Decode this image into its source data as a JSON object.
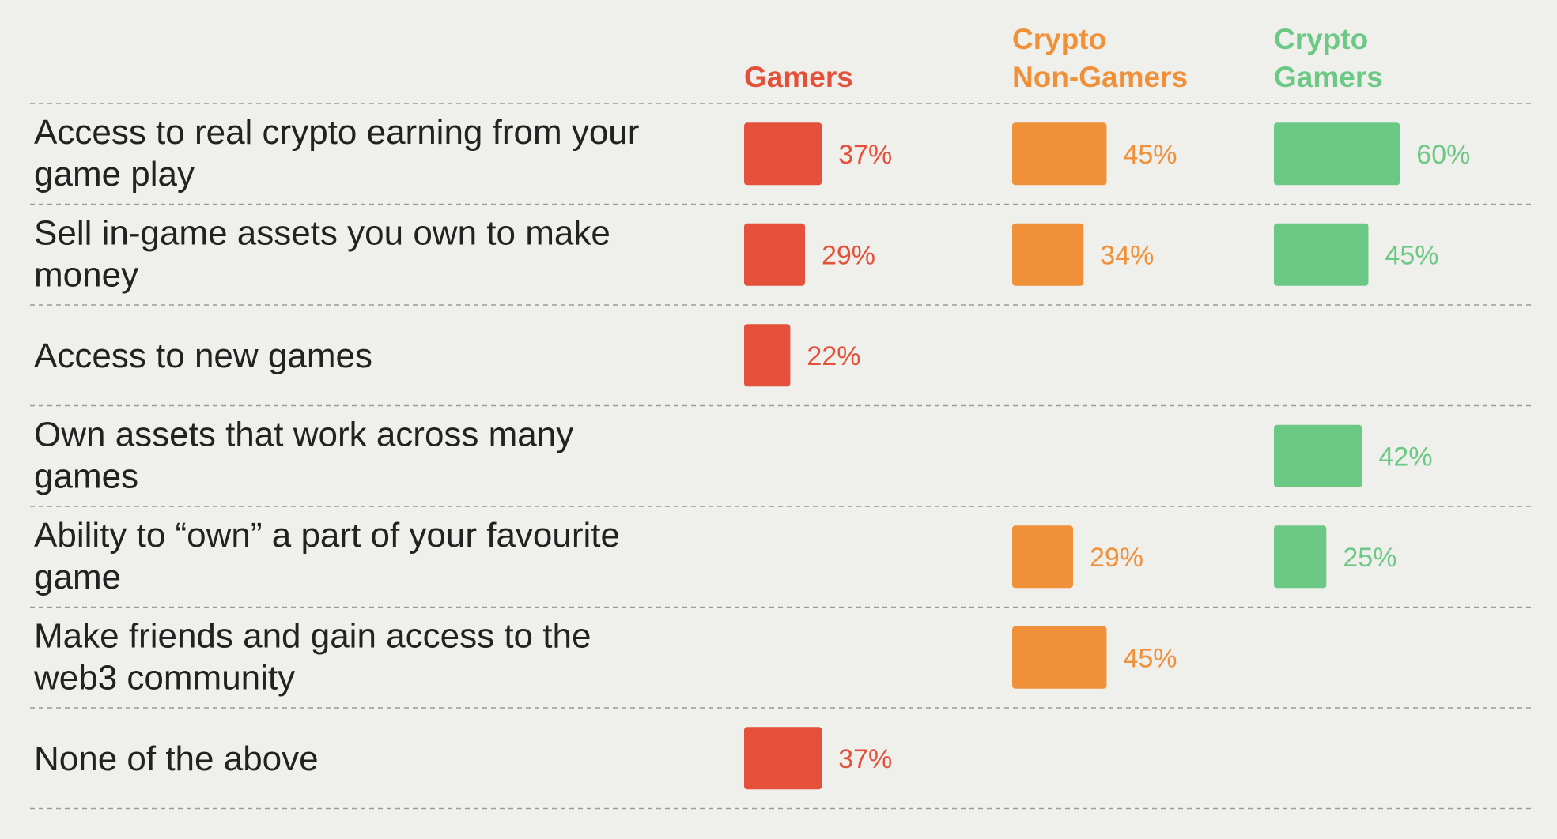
{
  "colors": {
    "background": "#efefeb",
    "gamers": "#e5503b",
    "crypto_non_gamers": "#f0913a",
    "crypto_gamers": "#6cc985",
    "text": "#222222",
    "divider": "#9a9a9a"
  },
  "chart_data": {
    "type": "bar",
    "orientation": "horizontal",
    "value_unit": "%",
    "grid": false,
    "legend": "column headers at top",
    "categories": [
      "Access to real crypto earning  from your game play",
      "Sell in-game assets you own to make money",
      "Access to new games",
      "Own assets that work across many games",
      "Ability to “own” a part of your favourite game",
      "Make friends and gain access to the web3 community",
      "None of the above"
    ],
    "category_lines": [
      [
        "Access to real crypto earning  from your",
        "game play"
      ],
      [
        "Sell in-game assets you own to make",
        "money"
      ],
      [
        "Access to new games"
      ],
      [
        "Own assets that work across many",
        "games"
      ],
      [
        "Ability to “own” a part of your favourite",
        "game"
      ],
      [
        "Make friends and gain access to the",
        "web3 community"
      ],
      [
        "None of the above"
      ]
    ],
    "series": [
      {
        "name": "Gamers",
        "header_lines": [
          "Gamers"
        ],
        "color_key": "gamers",
        "values": [
          37,
          29,
          22,
          null,
          null,
          null,
          37
        ],
        "labels": [
          "37%",
          "29%",
          "22%",
          null,
          null,
          null,
          "37%"
        ]
      },
      {
        "name": "Crypto Non-Gamers",
        "header_lines": [
          "Crypto",
          "Non-Gamers"
        ],
        "color_key": "crypto_non_gamers",
        "values": [
          45,
          34,
          null,
          null,
          29,
          45,
          null
        ],
        "labels": [
          "45%",
          "34%",
          null,
          null,
          "29%",
          "45%",
          null
        ]
      },
      {
        "name": "Crypto Gamers",
        "header_lines": [
          "Crypto",
          "Gamers"
        ],
        "color_key": "crypto_gamers",
        "values": [
          60,
          45,
          null,
          42,
          25,
          null,
          null
        ],
        "labels": [
          "60%",
          "45%",
          null,
          "42%",
          "25%",
          null,
          null
        ]
      }
    ]
  }
}
